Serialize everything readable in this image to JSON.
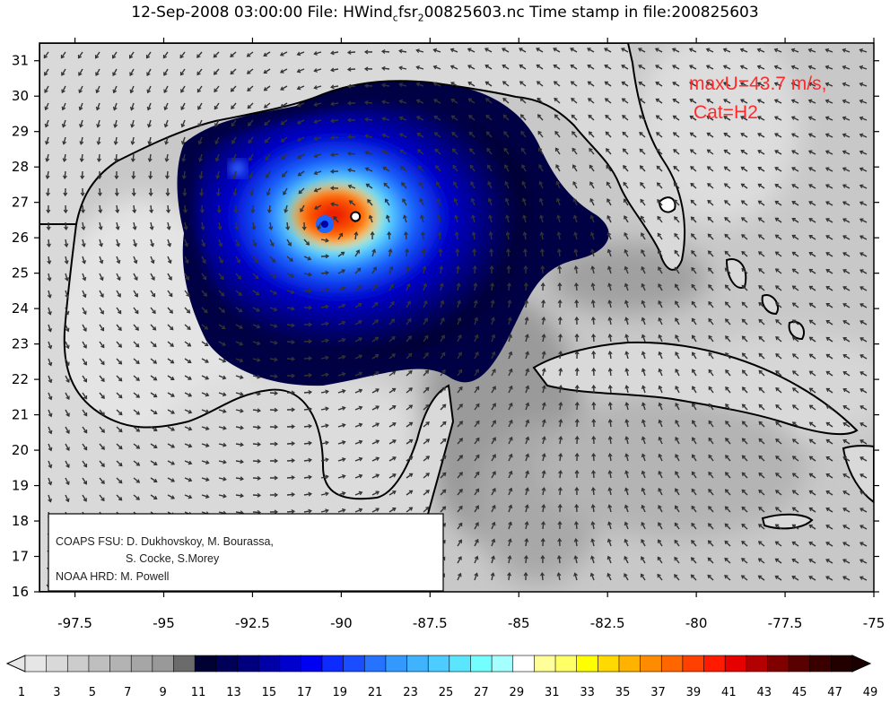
{
  "title": {
    "prefix": "12-Sep-2008 03:00:00 File: HWind",
    "sub1": "c",
    "mid": "fsr",
    "sub2": "2",
    "suffix": "00825603.nc Time stamp in file:200825603"
  },
  "axes": {
    "lon_ticks": [
      "-97.5",
      "-95",
      "-92.5",
      "-90",
      "-87.5",
      "-85",
      "-82.5",
      "-80",
      "-77.5",
      "-75"
    ],
    "lat_ticks": [
      "16",
      "17",
      "18",
      "19",
      "20",
      "21",
      "22",
      "23",
      "24",
      "25",
      "26",
      "27",
      "28",
      "29",
      "30",
      "31"
    ],
    "lon_range": [
      -98.5,
      -75
    ],
    "lat_range": [
      16,
      31.5
    ]
  },
  "annotation": {
    "line1": "maxU=43.7 m/s,",
    "line2": "Cat=H2",
    "color": "#ff2b2b"
  },
  "credits": {
    "line1": "COAPS FSU: D. Dukhovskoy, M. Bourassa,",
    "line2": "S. Cocke, S.Morey",
    "line3": "NOAA HRD:  M. Powell"
  },
  "colorbar": {
    "labels": [
      "1",
      "3",
      "5",
      "7",
      "9",
      "11",
      "13",
      "15",
      "17",
      "19",
      "21",
      "23",
      "25",
      "27",
      "29",
      "31",
      "33",
      "35",
      "37",
      "39",
      "41",
      "43",
      "45",
      "47",
      "49"
    ],
    "colors": [
      "#e6e6e6",
      "#d9d9d9",
      "#cccccc",
      "#bfbfbf",
      "#b3b3b3",
      "#a6a6a6",
      "#999999",
      "#6b6b6b",
      "#000033",
      "#000059",
      "#00007f",
      "#0000a6",
      "#0000cc",
      "#0000f2",
      "#0d2bff",
      "#1a4dff",
      "#2673ff",
      "#3399ff",
      "#40b3ff",
      "#4dccff",
      "#5ae6ff",
      "#73ffff",
      "#a6ffff",
      "#ffffff",
      "#ffff99",
      "#ffff66",
      "#ffff00",
      "#ffd900",
      "#ffb300",
      "#ff8c00",
      "#ff6600",
      "#ff4000",
      "#ff1a00",
      "#e60000",
      "#b30000",
      "#800000",
      "#590000",
      "#3a0000",
      "#220000"
    ]
  },
  "storm": {
    "center_lon": -89.6,
    "center_lat": 26.6,
    "eye_lon": -90.4,
    "eye_lat": 26.3
  }
}
